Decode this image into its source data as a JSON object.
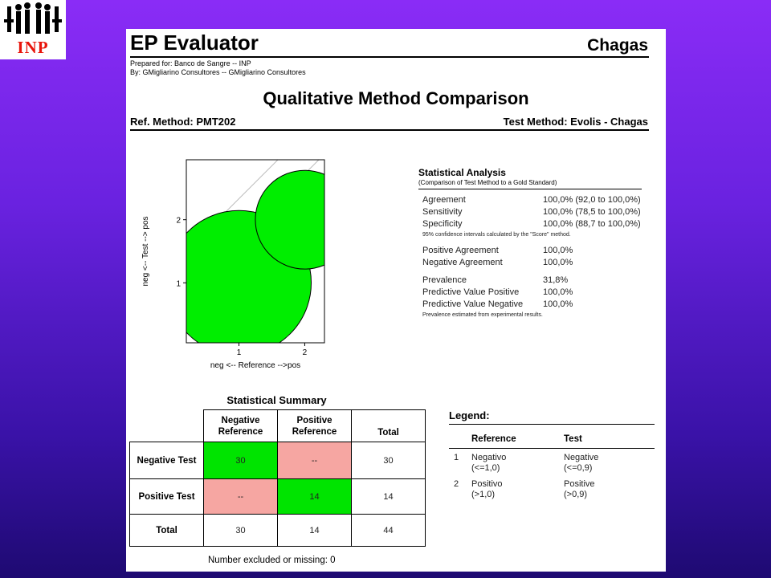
{
  "logo": {
    "text": "INP",
    "accent": "#e8140a"
  },
  "header": {
    "title": "EP Evaluator",
    "analyte": "Chagas",
    "prepared_for": "Prepared for: Banco de Sangre -- INP",
    "prepared_by": "By: GMigliarino Consultores -- GMigliarino Consultores",
    "subtitle": "Qualitative Method Comparison",
    "ref_method": "Ref. Method:  PMT202",
    "test_method": "Test Method:  Evolis - Chagas"
  },
  "chart_data": {
    "type": "scatter",
    "xlabel": "neg <-- Reference -->pos",
    "ylabel": "neg <-- Test --> pos",
    "x_ticks": [
      "1",
      "2"
    ],
    "y_ticks": [
      "1",
      "2"
    ],
    "xlim": [
      0.2,
      2.3
    ],
    "ylim": [
      0.05,
      2.95
    ],
    "points": [
      {
        "x": 1,
        "y": 1,
        "count": 30
      },
      {
        "x": 2,
        "y": 2,
        "count": 14
      }
    ],
    "marker_color": "#00ee00"
  },
  "stats": {
    "title": "Statistical Analysis",
    "subtitle": "(Comparison of Test Method to a Gold Standard)",
    "rows_a": [
      {
        "label": "Agreement",
        "value": "100,0% (92,0 to 100,0%)"
      },
      {
        "label": "Sensitivity",
        "value": "100,0% (78,5 to 100,0%)"
      },
      {
        "label": "Specificity",
        "value": "100,0% (88,7 to 100,0%)"
      }
    ],
    "note_ci": "95% confidence intervals calculated by the \"Score\" method.",
    "rows_b": [
      {
        "label": "Positive Agreement",
        "value": "100,0%"
      },
      {
        "label": "Negative Agreement",
        "value": "100,0%"
      }
    ],
    "rows_c": [
      {
        "label": "Prevalence",
        "value": "31,8%"
      },
      {
        "label": "Predictive Value Positive",
        "value": "100,0%"
      },
      {
        "label": "Predictive Value Negative",
        "value": "100,0%"
      }
    ],
    "note_prev": "Prevalence estimated from experimental results."
  },
  "summary": {
    "title": "Statistical Summary",
    "col_neg": "Negative Reference",
    "col_pos": "Positive Reference",
    "col_total": "Total",
    "rows": [
      {
        "label": "Negative Test",
        "neg": "30",
        "pos": "--",
        "total": "30"
      },
      {
        "label": "Positive Test",
        "neg": "--",
        "pos": "14",
        "total": "14"
      },
      {
        "label": "Total",
        "neg": "30",
        "pos": "14",
        "total": "44"
      }
    ],
    "excluded": "Number excluded or missing: 0",
    "agree_color": "#00e400",
    "disagree_color": "#f6a6a2"
  },
  "legend": {
    "title": "Legend:",
    "head_ref": "Reference",
    "head_test": "Test",
    "rows": [
      {
        "num": "1",
        "ref_1": "Negativo",
        "ref_2": "(<=1,0)",
        "test_1": "Negative",
        "test_2": "(<=0,9)"
      },
      {
        "num": "2",
        "ref_1": "Positivo",
        "ref_2": "(>1,0)",
        "test_1": "Positive",
        "test_2": "(>0,9)"
      }
    ]
  }
}
